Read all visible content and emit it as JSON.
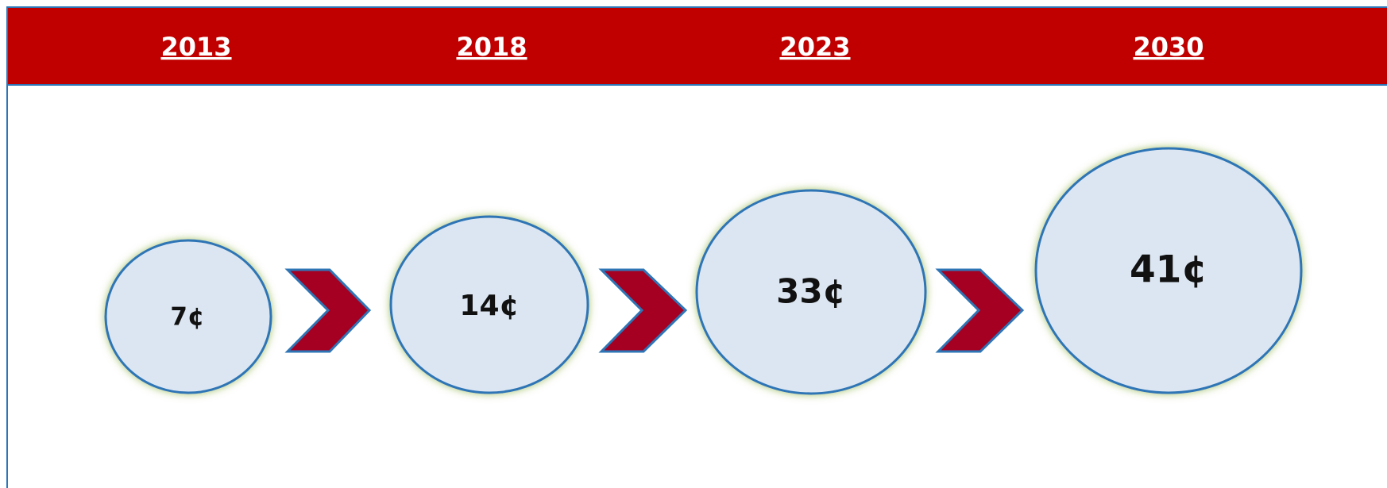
{
  "header": {
    "years": [
      "2013",
      "2018",
      "2023",
      "2030"
    ]
  },
  "stages": [
    {
      "value": "7¢"
    },
    {
      "value": "14¢"
    },
    {
      "value": "33¢"
    },
    {
      "value": "41¢"
    }
  ]
}
